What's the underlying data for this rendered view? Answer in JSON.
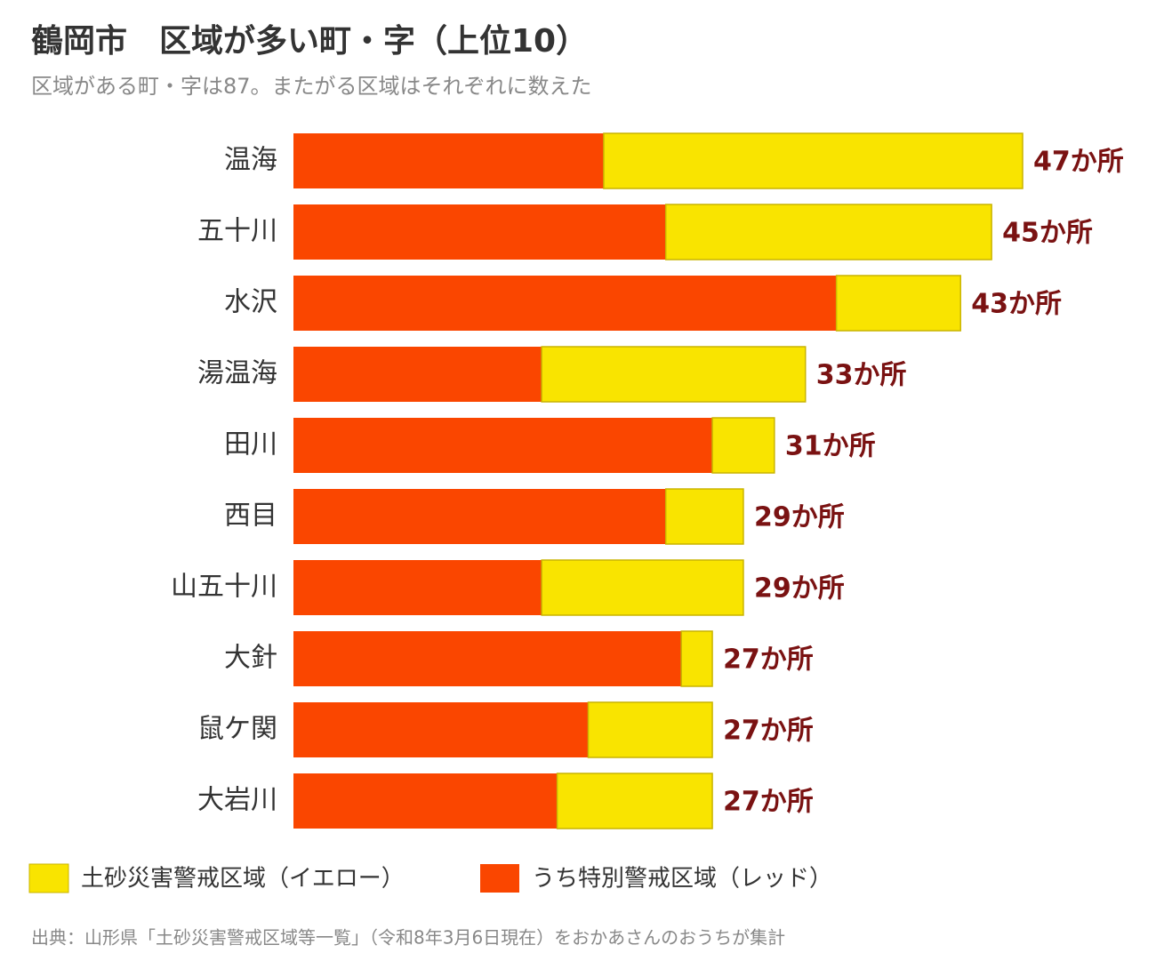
{
  "chart_data": {
    "type": "bar",
    "title": "鶴岡市　区域が多い町・字（上位10）",
    "subtitle": "区域がある町・字は87。またがる区域はそれぞれに数えた",
    "categories": [
      "温海",
      "五十川",
      "水沢",
      "湯温海",
      "田川",
      "西目",
      "山五十川",
      "大針",
      "鼠ケ関",
      "大岩川"
    ],
    "series": [
      {
        "name": "土砂災害警戒区域（イエロー）",
        "color": "#f9e400",
        "values": [
          27,
          21,
          8,
          17,
          4,
          5,
          13,
          2,
          8,
          10
        ]
      },
      {
        "name": "うち特別警戒区域（レッド）",
        "color": "#fa4600",
        "values": [
          20,
          24,
          35,
          16,
          27,
          24,
          16,
          25,
          19,
          17
        ]
      }
    ],
    "totals": {
      "values": [
        47,
        45,
        43,
        33,
        31,
        29,
        29,
        27,
        27,
        27
      ],
      "value_labels": [
        "47か所",
        "45か所",
        "43か所",
        "33か所",
        "31か所",
        "29か所",
        "29か所",
        "27か所",
        "27か所",
        "27か所"
      ]
    },
    "source": "出典：山形県「土砂災害警戒区域等一覧」（令和8年3月6日現在）をおかあさんのおうちが集計"
  }
}
